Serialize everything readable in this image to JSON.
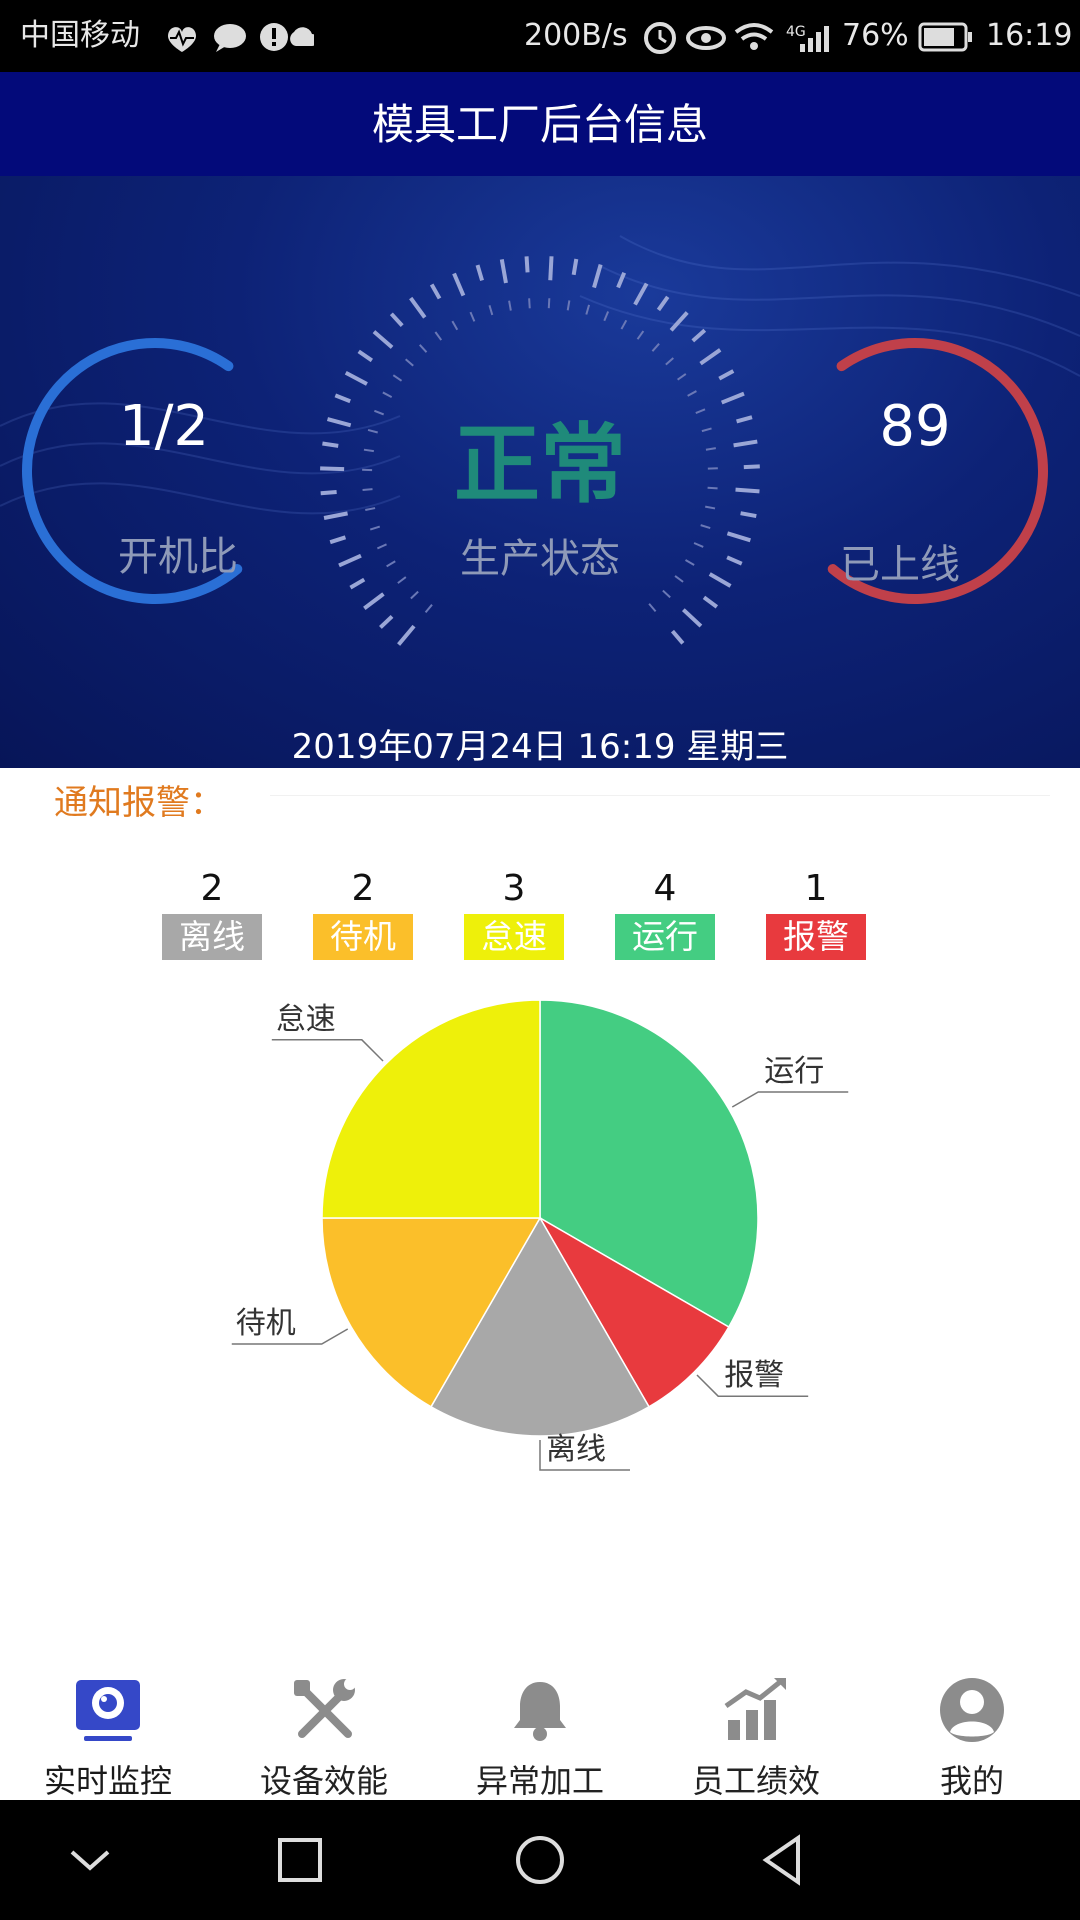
{
  "status_bar": {
    "carrier": "中国移动",
    "net_speed": "200B/s",
    "network": "4G",
    "battery": "76%",
    "time": "16:19"
  },
  "header": {
    "title": "模具工厂后台信息"
  },
  "dashboard": {
    "left_value": "1/2",
    "left_label": "开机比",
    "center_value": "正常",
    "center_label": "生产状态",
    "right_value": "89",
    "right_label": "已上线",
    "datetime": "2019年07月24日 16:19 星期三",
    "colors": {
      "left_arc": "#2a6fd6",
      "right_arc": "#c0404a",
      "status": "#1f8a7a"
    }
  },
  "notice": {
    "title": "通知报警："
  },
  "legend": [
    {
      "label": "离线",
      "count": "2",
      "color": "#a8a8a8"
    },
    {
      "label": "待机",
      "count": "2",
      "color": "#fbbf2a"
    },
    {
      "label": "怠速",
      "count": "3",
      "color": "#eef00a"
    },
    {
      "label": "运行",
      "count": "4",
      "color": "#44cd82"
    },
    {
      "label": "报警",
      "count": "1",
      "color": "#e83a3e"
    }
  ],
  "chart_data": {
    "type": "pie",
    "categories": [
      "运行",
      "报警",
      "离线",
      "待机",
      "怠速"
    ],
    "values": [
      4,
      1,
      2,
      2,
      3
    ],
    "colors": [
      "#44cd82",
      "#e83a3e",
      "#a8a8a8",
      "#fbbf2a",
      "#eef00a"
    ],
    "title": ""
  },
  "bottom_nav": [
    {
      "label": "实时监控",
      "icon": "monitor-icon",
      "active": true
    },
    {
      "label": "设备效能",
      "icon": "tools-icon",
      "active": false
    },
    {
      "label": "异常加工",
      "icon": "bell-icon",
      "active": false
    },
    {
      "label": "员工绩效",
      "icon": "growth-chart-icon",
      "active": false
    },
    {
      "label": "我的",
      "icon": "profile-icon",
      "active": false
    }
  ],
  "system_nav": [
    "down-icon",
    "recent-apps-icon",
    "home-icon",
    "back-icon"
  ]
}
